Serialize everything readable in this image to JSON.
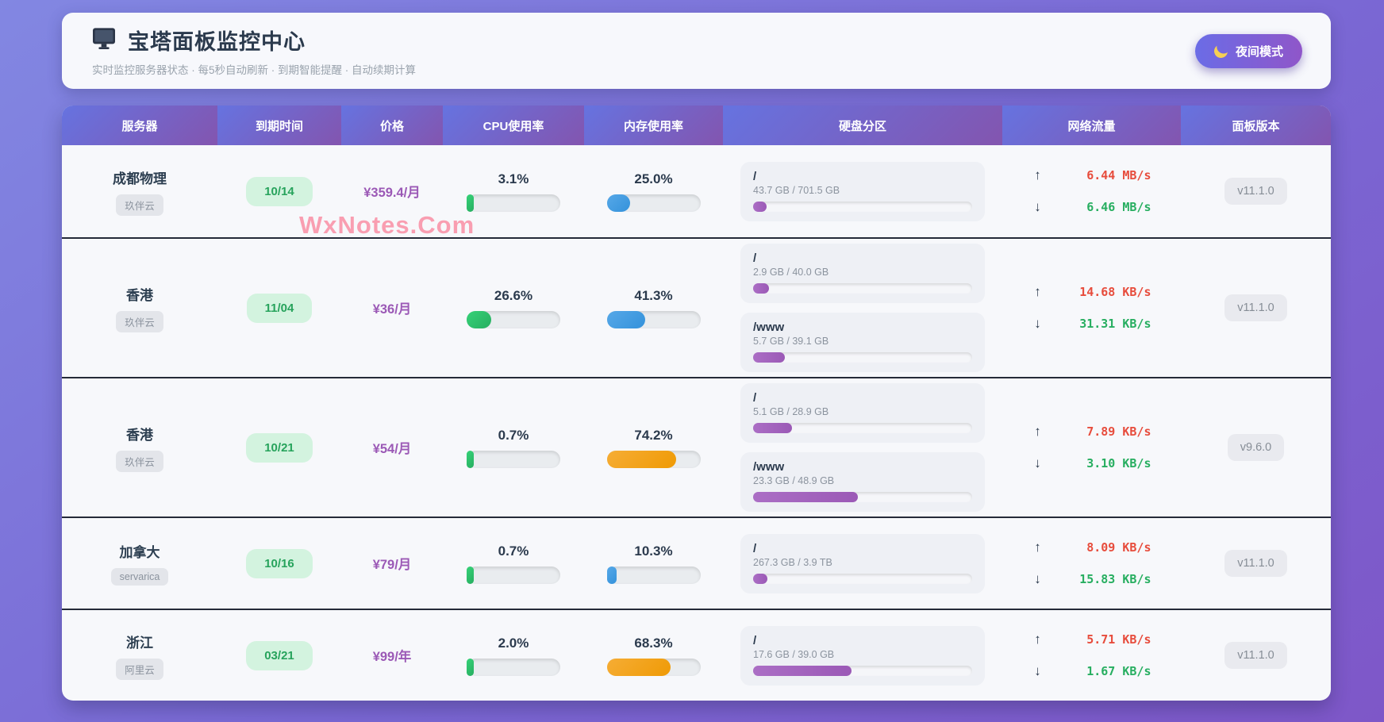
{
  "header": {
    "title": "宝塔面板监控中心",
    "subtitle": "实时监控服务器状态 · 每5秒自动刷新 · 到期智能提醒 · 自动续期计算",
    "night_mode_label": "夜间模式"
  },
  "watermark": "WxNotes.Com",
  "icons": {
    "net_up_arrow": "↑",
    "net_down_arrow": "↓"
  },
  "colors": {
    "cpu_green": "#2ecc71",
    "mem_blue": "#3498db",
    "mem_orange": "#f39c12",
    "disk_purple": "#9b59b6",
    "net_up_red": "#e74c3c",
    "net_down_green": "#27ae60",
    "price_purple": "#9b59b6",
    "expiry_green": "#27a35c"
  },
  "table": {
    "columns": [
      "服务器",
      "到期时间",
      "价格",
      "CPU使用率",
      "内存使用率",
      "硬盘分区",
      "网络流量",
      "面板版本"
    ],
    "rows": [
      {
        "name": "成都物理",
        "provider": "玖伴云",
        "expiry": "10/14",
        "price": "¥359.4/月",
        "cpu": {
          "label": "3.1%",
          "pct": 3.1,
          "color": "green"
        },
        "mem": {
          "label": "25.0%",
          "pct": 25.0,
          "color": "blue"
        },
        "disks": [
          {
            "mount": "/",
            "usage": "43.7 GB / 701.5 GB",
            "pct": 6.2
          }
        ],
        "net_up": "6.44 MB/s",
        "net_down": "6.46 MB/s",
        "version": "v11.1.0"
      },
      {
        "name": "香港",
        "provider": "玖伴云",
        "expiry": "11/04",
        "price": "¥36/月",
        "cpu": {
          "label": "26.6%",
          "pct": 26.6,
          "color": "green"
        },
        "mem": {
          "label": "41.3%",
          "pct": 41.3,
          "color": "blue"
        },
        "disks": [
          {
            "mount": "/",
            "usage": "2.9 GB / 40.0 GB",
            "pct": 7.3
          },
          {
            "mount": "/www",
            "usage": "5.7 GB / 39.1 GB",
            "pct": 14.6
          }
        ],
        "net_up": "14.68 KB/s",
        "net_down": "31.31 KB/s",
        "version": "v11.1.0"
      },
      {
        "name": "香港",
        "provider": "玖伴云",
        "expiry": "10/21",
        "price": "¥54/月",
        "cpu": {
          "label": "0.7%",
          "pct": 0.7,
          "color": "green"
        },
        "mem": {
          "label": "74.2%",
          "pct": 74.2,
          "color": "orange"
        },
        "disks": [
          {
            "mount": "/",
            "usage": "5.1 GB / 28.9 GB",
            "pct": 17.6
          },
          {
            "mount": "/www",
            "usage": "23.3 GB / 48.9 GB",
            "pct": 47.7
          }
        ],
        "net_up": "7.89 KB/s",
        "net_down": "3.10 KB/s",
        "version": "v9.6.0"
      },
      {
        "name": "加拿大",
        "provider": "servarica",
        "expiry": "10/16",
        "price": "¥79/月",
        "cpu": {
          "label": "0.7%",
          "pct": 0.7,
          "color": "green"
        },
        "mem": {
          "label": "10.3%",
          "pct": 10.3,
          "color": "blue"
        },
        "disks": [
          {
            "mount": "/",
            "usage": "267.3 GB / 3.9 TB",
            "pct": 6.7
          }
        ],
        "net_up": "8.09 KB/s",
        "net_down": "15.83 KB/s",
        "version": "v11.1.0"
      },
      {
        "name": "浙江",
        "provider": "阿里云",
        "expiry": "03/21",
        "price": "¥99/年",
        "cpu": {
          "label": "2.0%",
          "pct": 2.0,
          "color": "green"
        },
        "mem": {
          "label": "68.3%",
          "pct": 68.3,
          "color": "orange"
        },
        "disks": [
          {
            "mount": "/",
            "usage": "17.6 GB / 39.0 GB",
            "pct": 45.1
          }
        ],
        "net_up": "5.71 KB/s",
        "net_down": "1.67 KB/s",
        "version": "v11.1.0"
      }
    ]
  }
}
